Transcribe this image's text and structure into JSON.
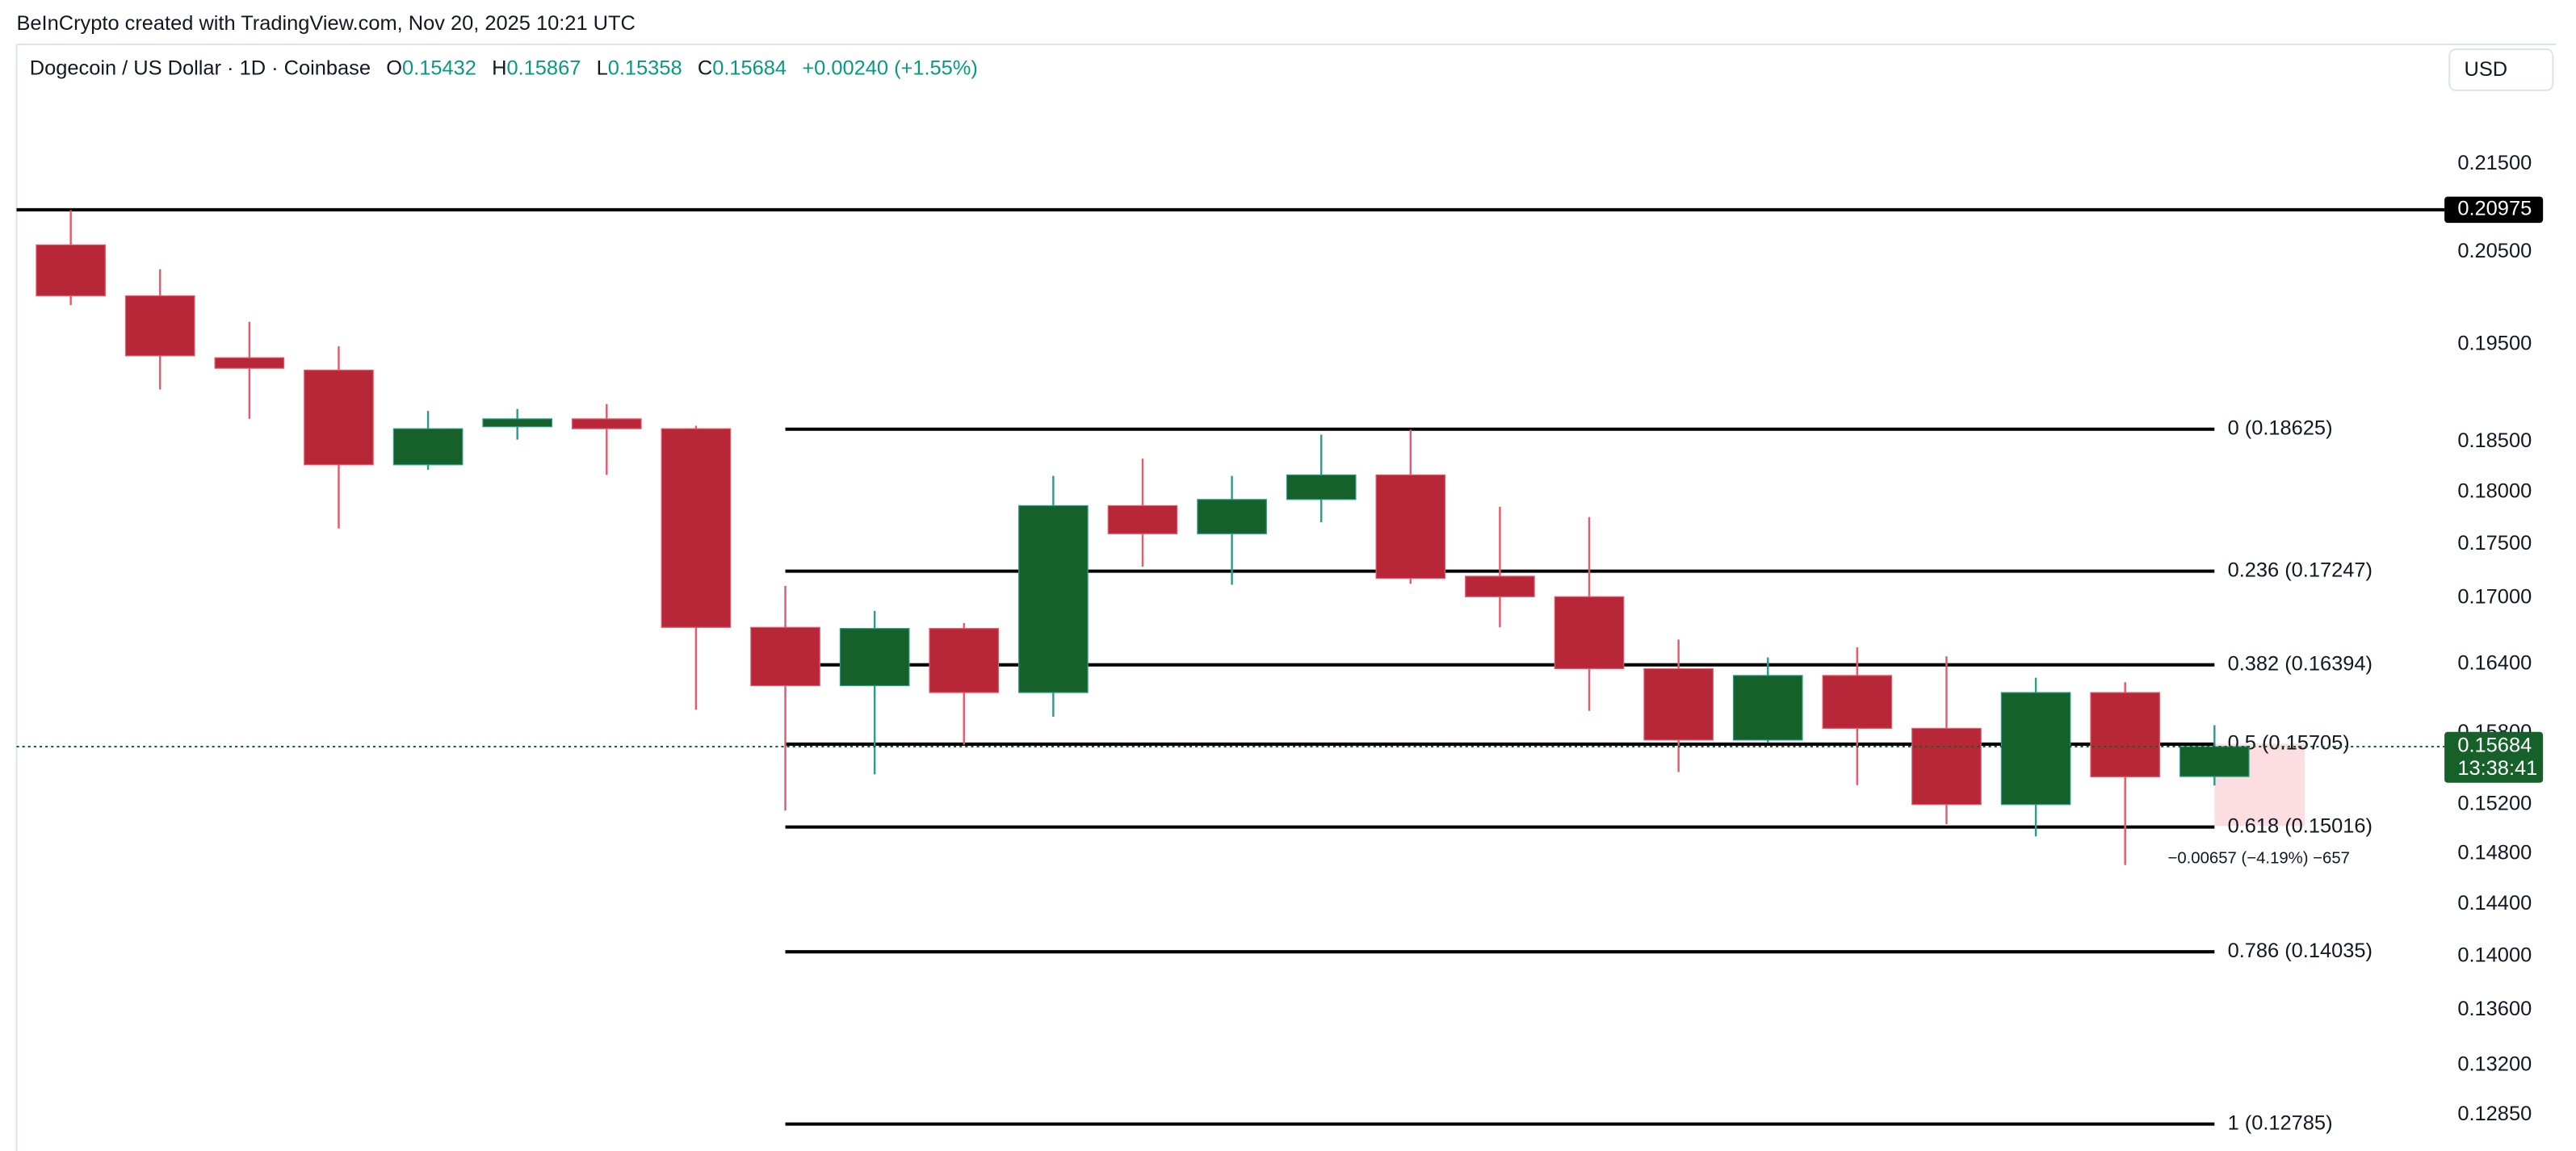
{
  "header": {
    "credit": "BeInCrypto created with TradingView.com, Nov 20, 2025 10:21 UTC",
    "symbol": "Dogecoin / US Dollar · 1D · Coinbase",
    "o_label": "O",
    "o": "0.15432",
    "h_label": "H",
    "h": "0.15867",
    "l_label": "L",
    "l": "0.15358",
    "c_label": "C",
    "c": "0.15684",
    "change": "+0.00240 (+1.55%)",
    "currency": "USD"
  },
  "chart_data": {
    "type": "candlestick",
    "log_scale": true,
    "grid": false,
    "up_color": "#16602a",
    "down_color": "#b82738",
    "up_wick_color": "#2a9d8f",
    "down_wick_color": "#e35b6c",
    "open": [
      0.2058,
      0.2002,
      0.1936,
      0.1923,
      0.1827,
      0.1865,
      0.1873,
      0.1863,
      0.1673,
      0.1621,
      0.1672,
      0.1615,
      0.1787,
      0.176,
      0.1793,
      0.1817,
      0.172,
      0.1701,
      0.1636,
      0.1574,
      0.163,
      0.1584,
      0.152,
      0.1615,
      0.15432
    ],
    "high": [
      0.2097,
      0.2031,
      0.1974,
      0.1948,
      0.1881,
      0.1883,
      0.1888,
      0.1866,
      0.1711,
      0.1688,
      0.1677,
      0.1816,
      0.1833,
      0.1816,
      0.1857,
      0.1862,
      0.1786,
      0.1776,
      0.1662,
      0.1646,
      0.1655,
      0.1647,
      0.1628,
      0.1624,
      0.15867
    ],
    "low": [
      0.1992,
      0.1903,
      0.1873,
      0.1765,
      0.1822,
      0.1852,
      0.1817,
      0.16,
      0.1515,
      0.1545,
      0.157,
      0.1594,
      0.1729,
      0.1712,
      0.1771,
      0.1713,
      0.1673,
      0.1599,
      0.1547,
      0.1572,
      0.1536,
      0.1504,
      0.1494,
      0.1471,
      0.15358
    ],
    "close": [
      0.2002,
      0.1938,
      0.1925,
      0.1827,
      0.1863,
      0.1873,
      0.1863,
      0.1673,
      0.1621,
      0.1672,
      0.1615,
      0.1787,
      0.176,
      0.1793,
      0.1817,
      0.1718,
      0.1701,
      0.1636,
      0.1574,
      0.163,
      0.1584,
      0.152,
      0.1615,
      0.1543,
      0.15684
    ],
    "ylim": [
      0.126,
      0.2292
    ],
    "yticks": [
      {
        "value": 0.215,
        "label": "0.21500"
      },
      {
        "value": 0.205,
        "label": "0.20500"
      },
      {
        "value": 0.195,
        "label": "0.19500"
      },
      {
        "value": 0.185,
        "label": "0.18500"
      },
      {
        "value": 0.18,
        "label": "0.18000"
      },
      {
        "value": 0.175,
        "label": "0.17500"
      },
      {
        "value": 0.17,
        "label": "0.17000"
      },
      {
        "value": 0.164,
        "label": "0.16400"
      },
      {
        "value": 0.158,
        "label": "0.15800"
      },
      {
        "value": 0.152,
        "label": "0.15200"
      },
      {
        "value": 0.148,
        "label": "0.14800"
      },
      {
        "value": 0.144,
        "label": "0.14400"
      },
      {
        "value": 0.14,
        "label": "0.14000"
      },
      {
        "value": 0.136,
        "label": "0.13600"
      },
      {
        "value": 0.132,
        "label": "0.13200"
      },
      {
        "value": 0.1285,
        "label": "0.12850"
      }
    ],
    "fib_levels": [
      {
        "label": "0 (0.18625)",
        "value": 0.18625
      },
      {
        "label": "0.236 (0.17247)",
        "value": 0.17247
      },
      {
        "label": "0.382 (0.16394)",
        "value": 0.16394
      },
      {
        "label": "0.5 (0.15705)",
        "value": 0.15705
      },
      {
        "label": "0.618 (0.15016)",
        "value": 0.15016
      },
      {
        "label": "0.786 (0.14035)",
        "value": 0.14035
      },
      {
        "label": "1 (0.12785)",
        "value": 0.12785
      }
    ],
    "resistance": {
      "label": "0.20975",
      "value": 0.20975
    },
    "last_price": {
      "label": "0.15684",
      "value": 0.15684,
      "countdown": "13:38:41"
    },
    "measure_label": "−0.00657 (−4.19%) −657"
  }
}
